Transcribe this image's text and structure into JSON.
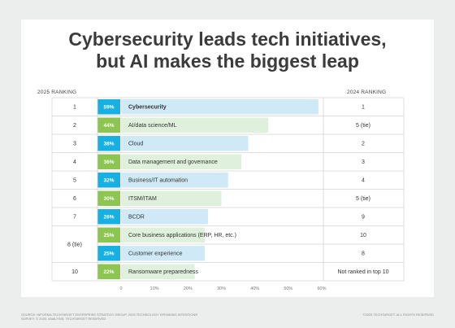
{
  "title_line1": "Cybersecurity leads tech initiatives,",
  "title_line2": "but AI makes the biggest leap",
  "header_2025": "2025 RANKING",
  "header_2024": "2024 RANKING",
  "source_text": "SOURCE: INFORMA TECHTARGET ENTERPRISE STRATEGY GROUP, 2025 TECHNOLOGY SPENDING INTENTIONS SURVEY. © 2025, ANALYSIS: TECHTARGET RESERVED",
  "copyright_text": "©2025 TECHTARGET. ALL RIGHTS RESERVED",
  "colors": {
    "bar": [
      "#cfe9f7",
      "#dff0dc"
    ],
    "box": [
      "#16b0e3",
      "#8cc54f"
    ],
    "grid": "#d4d4d4",
    "text": "#333333"
  },
  "chart_data": {
    "type": "bar",
    "orientation": "horizontal",
    "xlim": [
      0,
      60
    ],
    "x_ticks": [
      "0",
      "10%",
      "20%",
      "30%",
      "40%",
      "50%",
      "60%"
    ],
    "rows": [
      {
        "rank_2025": "1",
        "value": 59,
        "label": "59%",
        "category": "Cybersecurity",
        "rank_2024": "1",
        "bold": true
      },
      {
        "rank_2025": "2",
        "value": 44,
        "label": "44%",
        "category": "AI/data science/ML",
        "rank_2024": "5 (tie)"
      },
      {
        "rank_2025": "3",
        "value": 38,
        "label": "38%",
        "category": "Cloud",
        "rank_2024": "2"
      },
      {
        "rank_2025": "4",
        "value": 36,
        "label": "36%",
        "category": "Data management and governance",
        "rank_2024": "3"
      },
      {
        "rank_2025": "5",
        "value": 32,
        "label": "32%",
        "category": "Business/IT automation",
        "rank_2024": "4"
      },
      {
        "rank_2025": "6",
        "value": 30,
        "label": "30%",
        "category": "ITSM/ITAM",
        "rank_2024": "5 (tie)"
      },
      {
        "rank_2025": "7",
        "value": 26,
        "label": "26%",
        "category": "BCDR",
        "rank_2024": "9"
      },
      {
        "rank_2025": "8 (tie)",
        "value": 25,
        "label": "25%",
        "category": "Core business applications (ERP, HR, etc.)",
        "rank_2024": "10"
      },
      {
        "rank_2025": "8 (tie)",
        "value": 25,
        "label": "25%",
        "category": "Customer experience",
        "rank_2024": "8"
      },
      {
        "rank_2025": "10",
        "value": 22,
        "label": "22%",
        "category": "Ransomware preparedness",
        "rank_2024": "Not ranked in top 10"
      }
    ]
  }
}
